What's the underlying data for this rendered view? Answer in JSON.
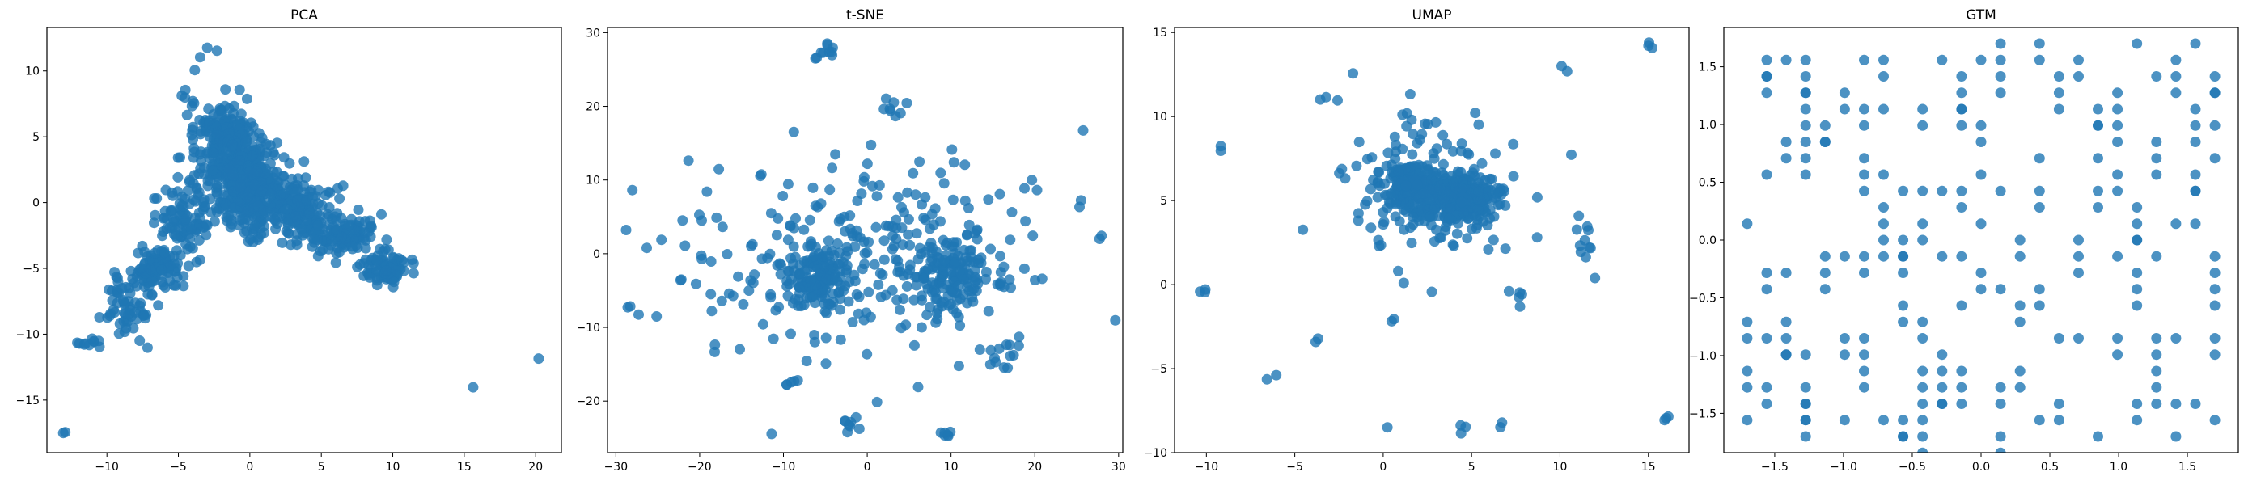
{
  "chart_data": [
    {
      "type": "scatter",
      "title": "PCA",
      "xlabel": "",
      "ylabel": "",
      "xlim": [
        -14.2,
        21.8
      ],
      "ylim": [
        -19.0,
        13.3
      ],
      "xticks": [
        -10,
        -5,
        0,
        5,
        10,
        15,
        20
      ],
      "yticks": [
        -15,
        -10,
        -5,
        0,
        5,
        10
      ],
      "grid": false,
      "color": "#1f77b4",
      "clusters": [
        {
          "x": -13.0,
          "y": -17.5,
          "rx": 0.3,
          "ry": 0.3,
          "n": 2
        },
        {
          "x": -11.0,
          "y": -10.6,
          "rx": 0.8,
          "ry": 0.4,
          "n": 10
        },
        {
          "x": -8.5,
          "y": -8.0,
          "rx": 1.5,
          "ry": 2.0,
          "n": 60
        },
        {
          "x": -6.5,
          "y": -5.0,
          "rx": 1.8,
          "ry": 1.2,
          "n": 90
        },
        {
          "x": -4.5,
          "y": -1.5,
          "rx": 1.5,
          "ry": 2.5,
          "n": 90
        },
        {
          "x": -2.0,
          "y": 5.0,
          "rx": 2.0,
          "ry": 2.4,
          "n": 170
        },
        {
          "x": -0.5,
          "y": 2.0,
          "rx": 2.2,
          "ry": 2.6,
          "n": 230
        },
        {
          "x": 0.5,
          "y": 0.0,
          "rx": 2.5,
          "ry": 2.2,
          "n": 190
        },
        {
          "x": 3.5,
          "y": -0.5,
          "rx": 2.0,
          "ry": 1.5,
          "n": 110
        },
        {
          "x": 6.5,
          "y": -2.5,
          "rx": 1.8,
          "ry": 1.3,
          "n": 110
        },
        {
          "x": 9.5,
          "y": -5.0,
          "rx": 1.3,
          "ry": 0.9,
          "n": 80
        },
        {
          "x": -2.5,
          "y": 11.0,
          "rx": 1.0,
          "ry": 0.8,
          "n": 3
        },
        {
          "x": 15.5,
          "y": -14.0,
          "rx": 0.1,
          "ry": 0.1,
          "n": 1
        },
        {
          "x": 20.2,
          "y": -11.8,
          "rx": 0.1,
          "ry": 0.1,
          "n": 1
        }
      ]
    },
    {
      "type": "scatter",
      "title": "t-SNE",
      "xlabel": "",
      "ylabel": "",
      "xlim": [
        -31.0,
        30.5
      ],
      "ylim": [
        -27.0,
        30.7
      ],
      "xticks": [
        -30,
        -20,
        -10,
        0,
        10,
        20,
        30
      ],
      "yticks": [
        -20,
        -10,
        0,
        10,
        20,
        30
      ],
      "grid": false,
      "color": "#1f77b4",
      "clusters": [
        {
          "x": -6.0,
          "y": -3.0,
          "rx": 4.0,
          "ry": 4.0,
          "n": 140
        },
        {
          "x": 10.0,
          "y": -3.0,
          "rx": 4.0,
          "ry": 4.0,
          "n": 140
        },
        {
          "x": 0.0,
          "y": 0.0,
          "rx": 17.0,
          "ry": 12.0,
          "n": 260
        },
        {
          "x": -5.0,
          "y": 27.0,
          "rx": 1.0,
          "ry": 1.2,
          "n": 10
        },
        {
          "x": 3.0,
          "y": 20.0,
          "rx": 1.5,
          "ry": 1.2,
          "n": 8
        },
        {
          "x": -2.0,
          "y": -23.8,
          "rx": 0.8,
          "ry": 0.8,
          "n": 8
        },
        {
          "x": 9.5,
          "y": -24.5,
          "rx": 0.8,
          "ry": 0.5,
          "n": 6
        },
        {
          "x": -9.0,
          "y": -17.5,
          "rx": 1.0,
          "ry": 0.8,
          "n": 5
        },
        {
          "x": 16.0,
          "y": -14.0,
          "rx": 1.5,
          "ry": 2.0,
          "n": 12
        },
        {
          "x": -28.5,
          "y": -7.2,
          "rx": 0.3,
          "ry": 0.3,
          "n": 2
        },
        {
          "x": -28.0,
          "y": 8.5,
          "rx": 0.3,
          "ry": 0.3,
          "n": 1
        },
        {
          "x": 25.5,
          "y": 16.5,
          "rx": 0.3,
          "ry": 0.3,
          "n": 1
        },
        {
          "x": 27.8,
          "y": 2.3,
          "rx": 0.3,
          "ry": 0.3,
          "n": 2
        }
      ]
    },
    {
      "type": "scatter",
      "title": "UMAP",
      "xlabel": "",
      "ylabel": "",
      "xlim": [
        -11.8,
        17.3
      ],
      "ylim": [
        -10.0,
        15.3
      ],
      "xticks": [
        -10,
        -5,
        0,
        5,
        10,
        15
      ],
      "yticks": [
        -10,
        -5,
        0,
        5,
        10,
        15
      ],
      "grid": false,
      "color": "#1f77b4",
      "clusters": [
        {
          "x": 1.5,
          "y": 6.0,
          "rx": 1.3,
          "ry": 1.0,
          "n": 180
        },
        {
          "x": 4.5,
          "y": 5.2,
          "rx": 1.6,
          "ry": 1.2,
          "n": 220
        },
        {
          "x": 3.0,
          "y": 5.5,
          "rx": 3.2,
          "ry": 2.5,
          "n": 160
        },
        {
          "x": 3.0,
          "y": 6.0,
          "rx": 5.5,
          "ry": 4.5,
          "n": 50
        },
        {
          "x": 11.5,
          "y": 3.2,
          "rx": 0.5,
          "ry": 1.3,
          "n": 10
        },
        {
          "x": 7.5,
          "y": -0.8,
          "rx": 0.4,
          "ry": 0.4,
          "n": 5
        },
        {
          "x": 15.0,
          "y": 14.2,
          "rx": 0.2,
          "ry": 0.2,
          "n": 3
        },
        {
          "x": 10.0,
          "y": 13.0,
          "rx": 0.3,
          "ry": 0.3,
          "n": 2
        },
        {
          "x": -10.2,
          "y": -0.5,
          "rx": 0.2,
          "ry": 0.2,
          "n": 3
        },
        {
          "x": -9.2,
          "y": 8.1,
          "rx": 0.2,
          "ry": 0.2,
          "n": 2
        },
        {
          "x": -6.3,
          "y": -5.5,
          "rx": 0.2,
          "ry": 0.2,
          "n": 2
        },
        {
          "x": -3.5,
          "y": -3.3,
          "rx": 0.2,
          "ry": 0.2,
          "n": 2
        },
        {
          "x": -3.3,
          "y": 11.1,
          "rx": 0.2,
          "ry": 0.2,
          "n": 2
        },
        {
          "x": 0.5,
          "y": -2.2,
          "rx": 0.2,
          "ry": 0.2,
          "n": 2
        },
        {
          "x": 0.0,
          "y": -8.4,
          "rx": 0.2,
          "ry": 0.2,
          "n": 1
        },
        {
          "x": 4.3,
          "y": -8.6,
          "rx": 0.2,
          "ry": 0.3,
          "n": 3
        },
        {
          "x": 6.7,
          "y": -8.4,
          "rx": 0.2,
          "ry": 0.2,
          "n": 2
        },
        {
          "x": 16.0,
          "y": -8.0,
          "rx": 0.2,
          "ry": 0.2,
          "n": 3
        }
      ]
    },
    {
      "type": "scatter",
      "title": "GTM",
      "xlabel": "",
      "ylabel": "",
      "xlim": [
        -1.87,
        1.87
      ],
      "ylim": [
        -1.84,
        1.84
      ],
      "xticks": [
        -1.5,
        -1.0,
        -0.5,
        0.0,
        0.5,
        1.0,
        1.5
      ],
      "yticks": [
        -1.5,
        -1.0,
        -0.5,
        0.0,
        0.5,
        1.0,
        1.5
      ],
      "grid": false,
      "color": "#1f77b4",
      "lattice": {
        "min": -1.7,
        "max": 1.7,
        "n": 25,
        "fill": 0.28
      }
    }
  ]
}
